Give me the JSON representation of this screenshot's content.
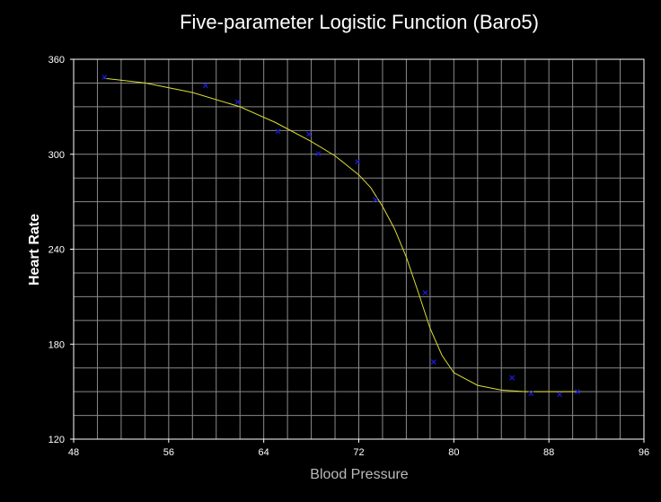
{
  "chart_data": {
    "type": "scatter",
    "title": "Five-parameter Logistic Function (Baro5)",
    "xlabel": "Blood Pressure",
    "ylabel": "Heart Rate",
    "xlim": [
      48,
      96
    ],
    "ylim": [
      120,
      360
    ],
    "x_ticks": [
      "48",
      "56",
      "64",
      "72",
      "80",
      "88",
      "96"
    ],
    "y_ticks": [
      "120",
      "180",
      "240",
      "300",
      "360"
    ],
    "grid": true,
    "points": {
      "x": [
        50.6,
        59.1,
        61.8,
        65.2,
        67.8,
        68.6,
        71.9,
        73.4,
        77.6,
        78.3,
        84.9,
        86.5,
        88.9,
        90.4
      ],
      "y": [
        348.7,
        343.4,
        333.0,
        314.5,
        312.7,
        300.4,
        295.2,
        271.3,
        212.5,
        168.8,
        158.8,
        148.8,
        148.2,
        150.0
      ],
      "marker": "x",
      "color": "#1a1acc"
    },
    "fit_curve": {
      "x": [
        50.6,
        54,
        58,
        62,
        65,
        68,
        70,
        72,
        73,
        74,
        75,
        76,
        77,
        78,
        79,
        80,
        82,
        84,
        86,
        88,
        90.4
      ],
      "y": [
        348,
        345,
        339,
        330,
        320,
        308,
        299,
        287,
        279,
        267,
        253,
        235,
        213,
        190,
        173,
        162,
        154,
        151,
        150,
        150,
        150
      ],
      "color": "#dddd33"
    },
    "colors": {
      "background": "#000000",
      "grid": "#8a8a8a",
      "axis": "#ffffff"
    }
  }
}
